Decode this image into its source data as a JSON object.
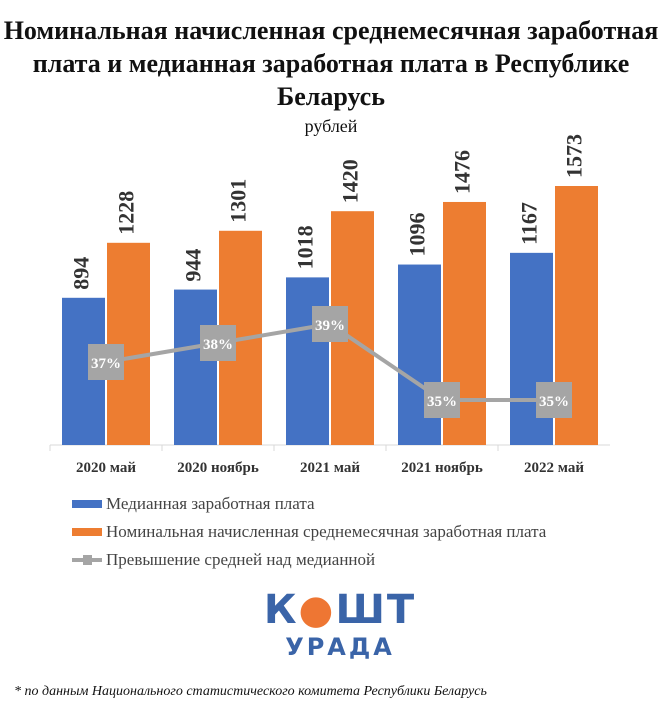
{
  "chart_data": {
    "type": "bar",
    "title": "Номинальная начисленная среднемесячная заработная плата и медианная заработная плата в Республике Беларусь",
    "subtitle": "рублей",
    "categories": [
      "2020 май",
      "2020 ноябрь",
      "2021 май",
      "2021 ноябрь",
      "2022 май"
    ],
    "series": [
      {
        "name": "Медианная заработная плата",
        "type": "bar",
        "color": "#4472c4",
        "values": [
          894,
          944,
          1018,
          1096,
          1167
        ]
      },
      {
        "name": "Номинальная начисленная среднемесячная заработная плата",
        "type": "bar",
        "color": "#ed7d31",
        "values": [
          1228,
          1301,
          1420,
          1476,
          1573
        ]
      },
      {
        "name": "Превышение средней над медианной",
        "type": "line",
        "color": "#a5a5a5",
        "values": [
          37,
          38,
          39,
          35,
          35
        ],
        "labels": [
          "37%",
          "38%",
          "39%",
          "35%",
          "35%"
        ]
      }
    ],
    "ylim": [
      0,
      1600
    ],
    "legend": "bottom",
    "grid": false
  },
  "logo": {
    "line1": "КОШТ",
    "line2": "УРАДА"
  },
  "footnote": "* по данным Национального статистического комитета Республики Беларусь"
}
